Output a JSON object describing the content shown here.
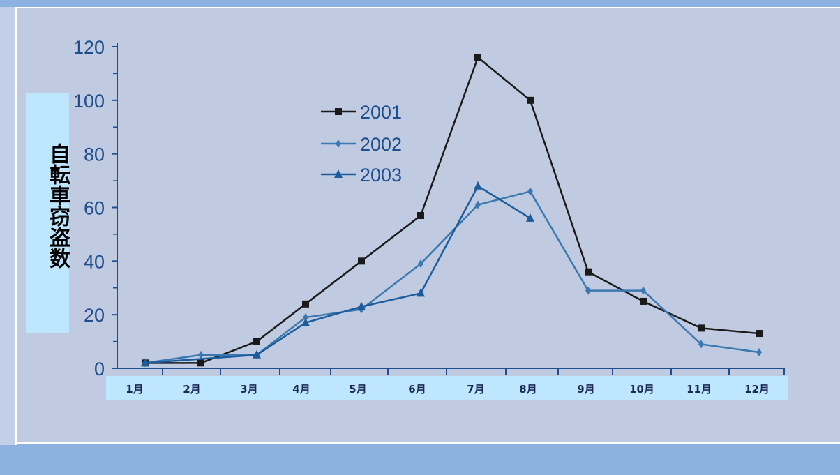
{
  "chart_data": {
    "type": "line",
    "title": "",
    "xlabel": "",
    "ylabel": "自転車窃盗数",
    "categories": [
      "1月",
      "2月",
      "3月",
      "4月",
      "5月",
      "6月",
      "7月",
      "8月",
      "9月",
      "10月",
      "11月",
      "12月"
    ],
    "ylim": [
      0,
      120
    ],
    "yticks": [
      0,
      20,
      40,
      60,
      80,
      100,
      120
    ],
    "legend_position": "upper-left inside plot",
    "grid": false,
    "series": [
      {
        "name": "2001",
        "marker": "square",
        "color": "#1a1a1a",
        "values": [
          2,
          2,
          10,
          24,
          40,
          57,
          116,
          100,
          36,
          25,
          15,
          13
        ]
      },
      {
        "name": "2002",
        "marker": "diamond",
        "color": "#3b78b0",
        "values": [
          2,
          5,
          5,
          19,
          22,
          39,
          61,
          66,
          29,
          29,
          9,
          6
        ]
      },
      {
        "name": "2003",
        "marker": "triangle",
        "color": "#1d5c9a",
        "values": [
          2,
          null,
          5,
          17,
          23,
          28,
          68,
          56,
          null,
          null,
          null,
          null
        ]
      }
    ]
  },
  "colors": {
    "axis": "#1f4e8c",
    "tick_text": "#1f4e8c"
  }
}
